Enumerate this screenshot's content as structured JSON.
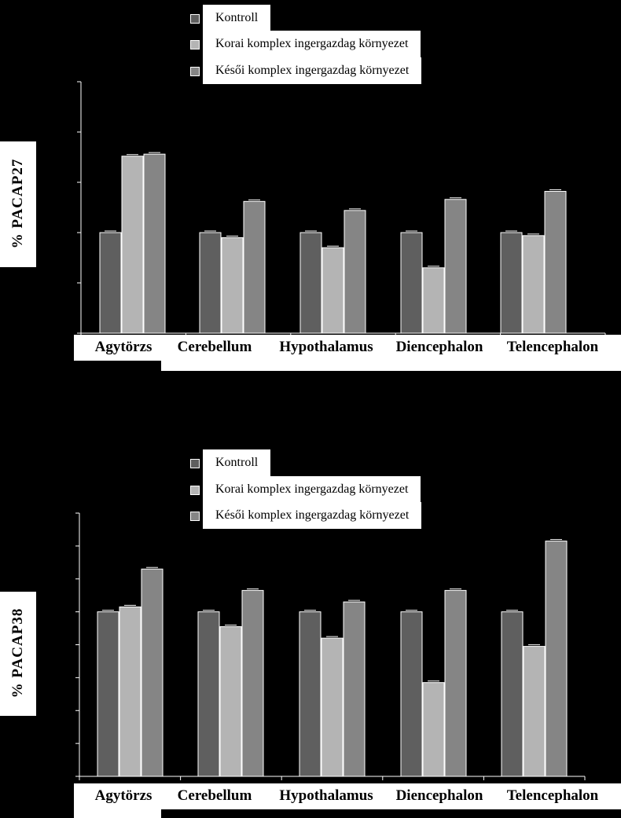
{
  "chart_data": [
    {
      "type": "bar",
      "ylabel": "% PACAP27",
      "xlabel": "",
      "title": "",
      "ylim": [
        0,
        250
      ],
      "yticks": [
        0,
        50,
        100,
        150,
        200,
        250
      ],
      "categories": [
        "Agytörzs",
        "Cerebellum",
        "Hypothalamus",
        "Diencephalon",
        "Telencephalon"
      ],
      "series": [
        {
          "name": "Kontroll",
          "color": "#5f5f5f",
          "values": [
            100,
            100,
            100,
            100,
            100
          ]
        },
        {
          "name": "Korai komplex ingergazdag környezet",
          "color": "#b4b4b4",
          "values": [
            176,
            95,
            85,
            65,
            97
          ]
        },
        {
          "name": "Késői komplex ingergazdag környezet",
          "color": "#858585",
          "values": [
            178,
            131,
            122,
            133,
            141
          ]
        }
      ],
      "legend_position": "top",
      "grid": false
    },
    {
      "type": "bar",
      "ylabel": "% PACAP38",
      "xlabel": "",
      "title": "",
      "ylim": [
        0,
        160
      ],
      "yticks": [
        0,
        20,
        40,
        60,
        80,
        100,
        120,
        140,
        160
      ],
      "categories": [
        "Agytörzs",
        "Cerebellum",
        "Hypothalamus",
        "Diencephalon",
        "Telencephalon"
      ],
      "series": [
        {
          "name": "Kontroll",
          "color": "#5f5f5f",
          "values": [
            100,
            100,
            100,
            100,
            100
          ]
        },
        {
          "name": "Korai komplex ingergazdag környezet",
          "color": "#b4b4b4",
          "values": [
            103,
            91,
            84,
            57,
            79
          ]
        },
        {
          "name": "Késői komplex ingergazdag környezet",
          "color": "#858585",
          "values": [
            126,
            113,
            106,
            113,
            143
          ]
        }
      ],
      "legend_position": "top",
      "grid": false
    }
  ]
}
